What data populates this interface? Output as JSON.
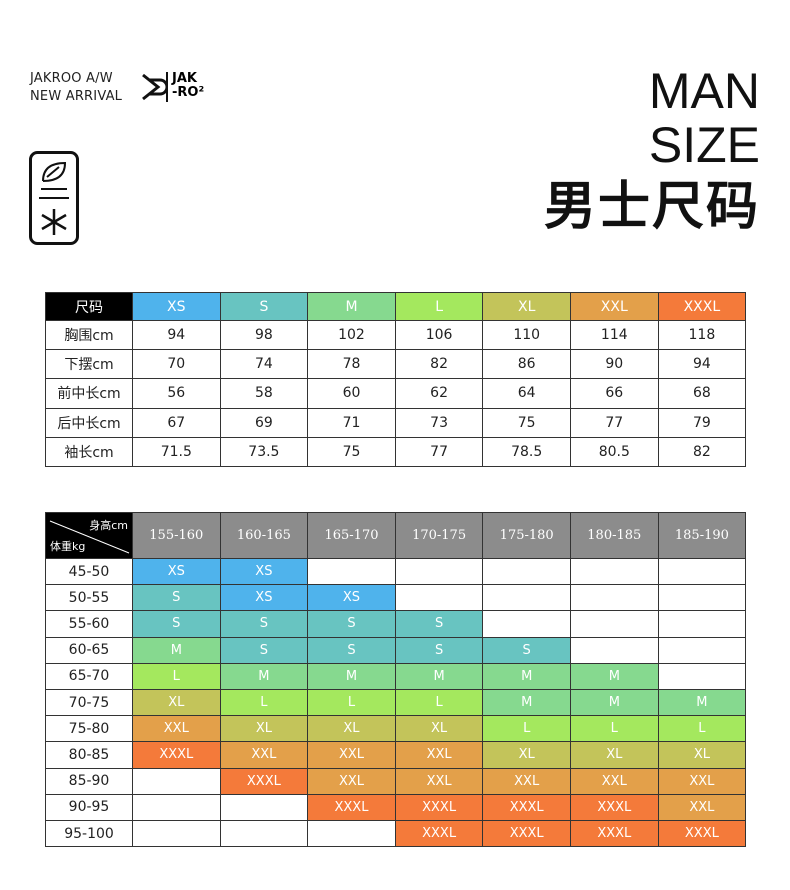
{
  "header": {
    "brand_lines": [
      "JAKROO A/W",
      "NEW ARRIVAL"
    ],
    "logo_lines": [
      "JAK",
      "-RO²"
    ],
    "title_lines": [
      "MAN",
      "SIZE"
    ],
    "title_cn": "男士尺码"
  },
  "size_colors": [
    "#4fb3ec",
    "#68c4c1",
    "#86d98f",
    "#a4e85e",
    "#c3c45a",
    "#e3a04a",
    "#f47a3a"
  ],
  "table1": {
    "corner": "尺码",
    "sizes": [
      "XS",
      "S",
      "M",
      "L",
      "XL",
      "XXL",
      "XXXL"
    ],
    "rows": [
      {
        "label": "胸围cm",
        "values": [
          94,
          98,
          102,
          106,
          110,
          114,
          118
        ]
      },
      {
        "label": "下摆cm",
        "values": [
          70,
          74,
          78,
          82,
          86,
          90,
          94
        ]
      },
      {
        "label": "前中长cm",
        "values": [
          56,
          58,
          60,
          62,
          64,
          66,
          68
        ]
      },
      {
        "label": "后中长cm",
        "values": [
          67,
          69,
          71,
          73,
          75,
          77,
          79
        ]
      },
      {
        "label": "袖长cm",
        "values": [
          71.5,
          73.5,
          75,
          77,
          78.5,
          80.5,
          82
        ]
      }
    ]
  },
  "table2": {
    "corner_top": "身高cm",
    "corner_bottom": "体重kg",
    "heights": [
      "155-160",
      "160-165",
      "165-170",
      "170-175",
      "175-180",
      "180-185",
      "185-190"
    ],
    "rows": [
      {
        "label": "45-50",
        "sizes": [
          "XS",
          "XS",
          null,
          null,
          null,
          null,
          null
        ]
      },
      {
        "label": "50-55",
        "sizes": [
          "S",
          "XS",
          "XS",
          null,
          null,
          null,
          null
        ]
      },
      {
        "label": "55-60",
        "sizes": [
          "S",
          "S",
          "S",
          "S",
          null,
          null,
          null
        ]
      },
      {
        "label": "60-65",
        "sizes": [
          "M",
          "S",
          "S",
          "S",
          "S",
          null,
          null
        ]
      },
      {
        "label": "65-70",
        "sizes": [
          "L",
          "M",
          "M",
          "M",
          "M",
          "M",
          null
        ]
      },
      {
        "label": "70-75",
        "sizes": [
          "XL",
          "L",
          "L",
          "L",
          "M",
          "M",
          "M"
        ]
      },
      {
        "label": "75-80",
        "sizes": [
          "XXL",
          "XL",
          "XL",
          "XL",
          "L",
          "L",
          "L"
        ]
      },
      {
        "label": "80-85",
        "sizes": [
          "XXXL",
          "XXL",
          "XXL",
          "XXL",
          "XL",
          "XL",
          "XL"
        ]
      },
      {
        "label": "85-90",
        "sizes": [
          null,
          "XXXL",
          "XXL",
          "XXL",
          "XXL",
          "XXL",
          "XXL"
        ]
      },
      {
        "label": "90-95",
        "sizes": [
          null,
          null,
          "XXXL",
          "XXXL",
          "XXXL",
          "XXXL",
          "XXL"
        ]
      },
      {
        "label": "95-100",
        "sizes": [
          null,
          null,
          null,
          "XXXL",
          "XXXL",
          "XXXL",
          "XXXL"
        ]
      }
    ]
  }
}
